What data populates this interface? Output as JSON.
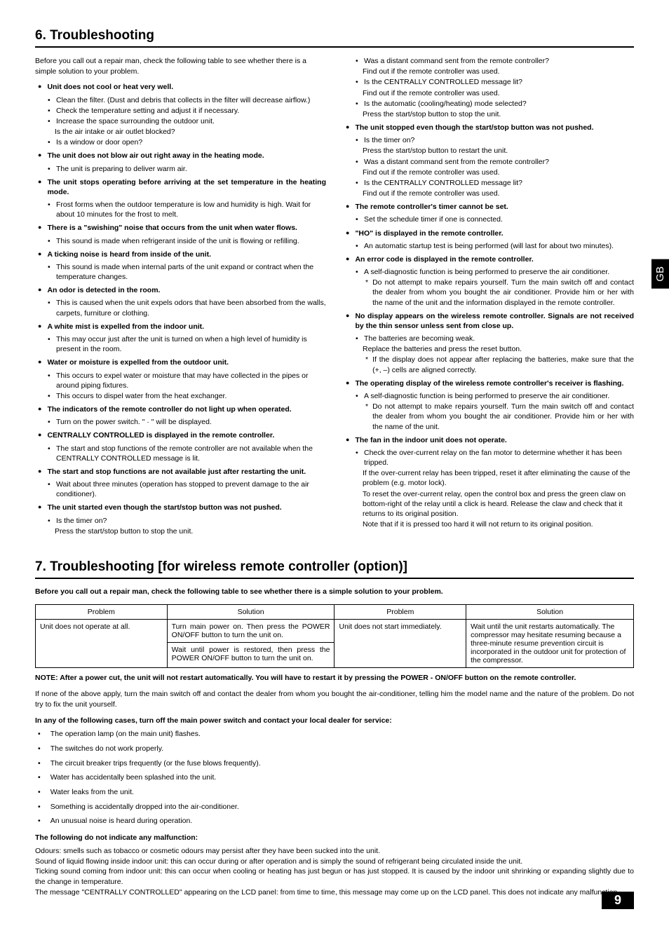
{
  "gb_label": "GB",
  "page_number": "9",
  "section6": {
    "title": "6. Troubleshooting",
    "intro": "Before you call out a repair man, check the following table to see whether there is a simple solution to your problem.",
    "left": [
      {
        "h": "Unit does not cool or heat very well.",
        "subs": [
          {
            "m": "•",
            "t": "Clean the filter. (Dust and debris that collects in the filter will decrease airflow.)"
          },
          {
            "m": "•",
            "t": "Check the temperature setting and adjust it if necessary."
          },
          {
            "m": "•",
            "t": "Increase the space surrounding the outdoor unit."
          },
          {
            "m": "",
            "t": "Is the air intake or air outlet blocked?"
          },
          {
            "m": "•",
            "t": "Is a window or door open?"
          }
        ]
      },
      {
        "h": "The unit does not blow air out right away in the heating mode.",
        "subs": [
          {
            "m": "•",
            "t": "The unit is preparing to deliver warm air."
          }
        ]
      },
      {
        "h": "The unit stops operating before arriving at the set temperature in the heating mode.",
        "justify": true,
        "subs": [
          {
            "m": "•",
            "t": "Frost forms when the outdoor temperature is low and humidity is high. Wait for about 10 minutes for the frost to melt."
          }
        ]
      },
      {
        "h": "There is a \"swishing\" noise that occurs from the unit when water flows.",
        "subs": [
          {
            "m": "•",
            "t": "This sound is made when refrigerant inside of the unit is flowing or refilling."
          }
        ]
      },
      {
        "h": "A ticking noise is heard from inside of the unit.",
        "subs": [
          {
            "m": "•",
            "t": "This sound is made when internal parts of the unit expand or contract when the temperature changes."
          }
        ]
      },
      {
        "h": "An odor is detected in the room.",
        "subs": [
          {
            "m": "•",
            "t": "This is caused when the unit expels odors that have been absorbed from the walls, carpets, furniture or clothing."
          }
        ]
      },
      {
        "h": "A white mist is expelled from the indoor unit.",
        "subs": [
          {
            "m": "•",
            "t": "This may occur just after the unit is turned on when a high level of humidity is present in the room."
          }
        ]
      },
      {
        "h": "Water or moisture is expelled from the outdoor unit.",
        "subs": [
          {
            "m": "•",
            "t": "This occurs to expel water or moisture that may have collected in the pipes or around piping fixtures."
          },
          {
            "m": "•",
            "t": "This occurs to dispel water from the heat exchanger."
          }
        ]
      },
      {
        "h": "The indicators of the remote controller do not light up when operated.",
        "subs": [
          {
            "m": "•",
            "t": "Turn on the power switch. \" · \" will be displayed."
          }
        ]
      },
      {
        "h": "CENTRALLY CONTROLLED is displayed in the remote controller.",
        "subs": [
          {
            "m": "•",
            "t": "The start and stop functions of the remote controller are not available when the CENTRALLY CONTROLLED message is lit."
          }
        ]
      },
      {
        "h": "The start and stop functions are not available just after restarting the unit.",
        "justify": true,
        "subs": [
          {
            "m": "•",
            "t": "Wait about three minutes (operation has stopped to prevent damage to the air conditioner)."
          }
        ]
      },
      {
        "h": "The unit started even though the start/stop button was not pushed.",
        "subs": [
          {
            "m": "•",
            "t": "Is the timer on?"
          },
          {
            "m": "",
            "t": "Press the start/stop button to stop the unit."
          }
        ]
      }
    ],
    "right": [
      {
        "nohead": true,
        "subs": [
          {
            "m": "•",
            "t": "Was a distant command sent from the remote controller?"
          },
          {
            "m": "",
            "t": "Find out if the remote controller was used."
          },
          {
            "m": "•",
            "t": "Is the CENTRALLY CONTROLLED message lit?"
          },
          {
            "m": "",
            "t": "Find out if the remote controller was used."
          },
          {
            "m": "•",
            "t": "Is the automatic (cooling/heating) mode selected?"
          },
          {
            "m": "",
            "t": "Press the start/stop button to stop the unit."
          }
        ]
      },
      {
        "h": "The unit stopped even though the start/stop button was not pushed.",
        "subs": [
          {
            "m": "•",
            "t": "Is the timer on?"
          },
          {
            "m": "",
            "t": "Press the start/stop button to restart the unit."
          },
          {
            "m": "•",
            "t": "Was a distant command sent from the remote controller?"
          },
          {
            "m": "",
            "t": "Find out if the remote controller was used."
          },
          {
            "m": "•",
            "t": "Is the CENTRALLY CONTROLLED message lit?"
          },
          {
            "m": "",
            "t": "Find out if the remote controller was used."
          }
        ]
      },
      {
        "h": "The remote controller's timer cannot be set.",
        "subs": [
          {
            "m": "•",
            "t": "Set the schedule timer if one is connected."
          }
        ]
      },
      {
        "h": "\"HO\" is displayed in the remote controller.",
        "subs": [
          {
            "m": "•",
            "t": "An automatic startup test is being performed (will last for about two minutes)."
          }
        ]
      },
      {
        "h": "An error code is displayed in the remote controller.",
        "subs": [
          {
            "m": "•",
            "t": "A self-diagnostic function is being performed to preserve the air conditioner."
          }
        ],
        "stars": [
          {
            "t": "Do not attempt to make repairs yourself. Turn the main switch off and contact the dealer from whom you bought the air conditioner. Provide him or her with the name of the unit and the information displayed in the remote controller."
          }
        ]
      },
      {
        "h": "No display appears on the wireless remote controller. Signals are not received by the thin sensor unless sent from close up.",
        "justify": true,
        "subs": [
          {
            "m": "•",
            "t": "The batteries are becoming weak."
          },
          {
            "m": "",
            "t": "Replace the batteries and press the reset button."
          }
        ],
        "stars": [
          {
            "t": "If the display does not appear after replacing the batteries, make sure that the (+, –) cells are aligned correctly."
          }
        ]
      },
      {
        "h": "The operating display of the wireless remote controller's receiver is flashing.",
        "subs": [
          {
            "m": "•",
            "t": "A self-diagnostic function is being performed to preserve the air conditioner."
          }
        ],
        "stars": [
          {
            "t": "Do not attempt to make repairs yourself. Turn the main switch off and contact the dealer from whom you bought the air conditioner. Provide him or her with the name of the unit."
          }
        ]
      },
      {
        "h": "The fan in the indoor unit does not operate.",
        "subs": [
          {
            "m": "•",
            "t": "Check the over-current relay on the fan motor to determine whether it has been tripped."
          },
          {
            "m": "",
            "t": "If the over-current relay has been tripped, reset it after eliminating the cause of the problem (e.g. motor lock)."
          },
          {
            "m": "",
            "t": "To reset the over-current relay, open the control box and press the green claw on bottom-right of the relay until a click is heard. Release the claw and check that it returns to its original position."
          },
          {
            "m": "",
            "t": "Note that if it is pressed too hard it will not return to its original position."
          }
        ]
      }
    ]
  },
  "section7": {
    "title": "7. Troubleshooting [for wireless remote controller (option)]",
    "intro": "Before you call out a repair man, check the following table to see whether there is a simple solution to your problem.",
    "table": {
      "headers": [
        "Problem",
        "Solution",
        "Problem",
        "Solution"
      ],
      "row": {
        "p1": "Unit does not operate at all.",
        "s1a": "Turn main power on. Then press the POWER ON/OFF button to turn the unit on.",
        "s1b": "Wait until power is restored, then press the POWER ON/OFF button to turn the unit on.",
        "p2": "Unit does not start immediately.",
        "s2": "Wait until the unit restarts automatically. The compressor may hesitate resuming because a three-minute resume prevention circuit is incorporated in the outdoor unit for protection of the compressor."
      }
    },
    "note": "NOTE: After a power cut, the unit will not restart automatically. You will have to restart it by pressing the POWER - ON/OFF button on the remote controller.",
    "body1": "If none of the above apply, turn the main switch off and contact the dealer from whom you bought the air-conditioner, telling him the model name and the nature of the problem. Do not try to fix the unit yourself.",
    "bold1": "In any of the following cases, turn off the main power switch and contact your local dealer for service:",
    "dashes": [
      "The operation lamp (on the main unit) flashes.",
      "The switches do not work properly.",
      "The circuit breaker trips frequently (or the fuse blows frequently).",
      "Water has accidentally been splashed into the unit.",
      "Water leaks from the unit.",
      "Something is accidentally dropped into the air-conditioner.",
      "An unusual noise is heard during operation."
    ],
    "bold2": "The following do not indicate any malfunction:",
    "body2": "Odours: smells such as tobacco or cosmetic odours may persist after they have been sucked into the unit.",
    "body3": "Sound of liquid flowing inside indoor unit: this can occur during or after operation and is simply the sound of refrigerant being circulated inside the unit.",
    "body4": "Ticking sound coming from indoor unit: this can occur when cooling or heating has just begun or has just stopped. It is caused by the indoor unit shrinking or expanding slightly due to the change in temperature.",
    "body5": "The message \"CENTRALLY CONTROLLED\" appearing on the LCD panel: from time to time, this message may come up on the LCD panel. This does not indicate any malfunction."
  }
}
